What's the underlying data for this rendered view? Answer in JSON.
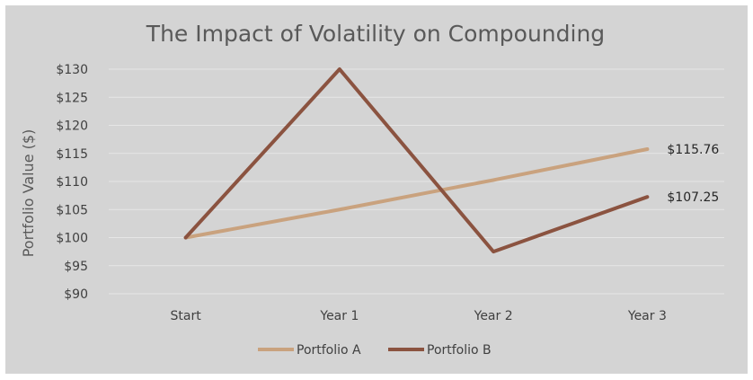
{
  "chart_data": {
    "type": "line",
    "title": "The Impact of Volatility on Compounding",
    "xlabel": "",
    "ylabel": "Portfolio Value ($)",
    "categories": [
      "Start",
      "Year 1",
      "Year 2",
      "Year 3"
    ],
    "ylim": [
      90,
      130
    ],
    "yticks": [
      90,
      95,
      100,
      105,
      110,
      115,
      120,
      125,
      130
    ],
    "ytick_labels": [
      "$90",
      "$95",
      "$100",
      "$105",
      "$110",
      "$115",
      "$120",
      "$125",
      "$130"
    ],
    "grid": true,
    "legend": "bottom",
    "series": [
      {
        "name": "Portfolio A",
        "color": "#c9a27e",
        "values": [
          100,
          105,
          110.25,
          115.76
        ],
        "end_label": "$115.76"
      },
      {
        "name": "Portfolio B",
        "color": "#8b5340",
        "values": [
          100,
          130,
          97.5,
          107.25
        ],
        "end_label": "$107.25"
      }
    ]
  }
}
